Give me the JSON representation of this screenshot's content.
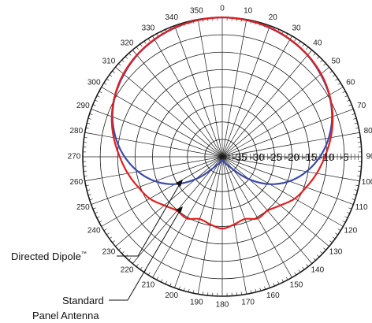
{
  "chart_data": {
    "type": "polar-line",
    "angular_axis": {
      "unit": "degrees",
      "direction": "clockwise",
      "zero_at": "top",
      "tick_labels": [
        "0",
        "10",
        "20",
        "30",
        "40",
        "50",
        "60",
        "70",
        "80",
        "90",
        "100",
        "110",
        "120",
        "130",
        "140",
        "150",
        "160",
        "170",
        "180",
        "190",
        "200",
        "210",
        "220",
        "230",
        "240",
        "250",
        "260",
        "270",
        "280",
        "290",
        "300",
        "310",
        "320",
        "330",
        "340",
        "350"
      ]
    },
    "radial_axis": {
      "range": [
        -40,
        0
      ],
      "tick_values": [
        -35,
        -30,
        -25,
        -20,
        -15,
        -10,
        -5
      ],
      "tick_labels": [
        "-35",
        "-30",
        "-25",
        "-20",
        "-15",
        "-10",
        "-5"
      ]
    },
    "grid": true,
    "series": [
      {
        "name": "Directed Dipole",
        "name_mark": "™",
        "color": "#3b4aa8",
        "theta": [
          0,
          10,
          20,
          30,
          40,
          50,
          60,
          70,
          80,
          90,
          100,
          110,
          120,
          130,
          140,
          150,
          160,
          170,
          180,
          190,
          200,
          210,
          220,
          230,
          240,
          250,
          260,
          270,
          280,
          290,
          300,
          310,
          320,
          330,
          340,
          350
        ],
        "r": [
          0,
          -0.2,
          -0.6,
          -1.2,
          -2,
          -3.2,
          -4.6,
          -6.5,
          -9,
          -12,
          -15.5,
          -19.5,
          -24.3,
          -30,
          -35.5,
          -37.5,
          -38.3,
          -38.8,
          -39,
          -38.8,
          -38.3,
          -37.5,
          -35.5,
          -30,
          -24.3,
          -19.5,
          -15.5,
          -12,
          -9,
          -6.5,
          -4.6,
          -3.2,
          -2,
          -1.2,
          -0.6,
          -0.2
        ]
      },
      {
        "name": "Standard Panel Antenna",
        "color": "#e02020",
        "theta": [
          0,
          10,
          20,
          30,
          40,
          50,
          60,
          70,
          80,
          90,
          100,
          110,
          120,
          130,
          140,
          150,
          160,
          170,
          180,
          190,
          200,
          210,
          220,
          230,
          240,
          250,
          260,
          270,
          280,
          290,
          300,
          310,
          320,
          330,
          340,
          350
        ],
        "r": [
          0,
          -0.2,
          -0.5,
          -1.1,
          -1.9,
          -3,
          -4.5,
          -6.3,
          -8.4,
          -10.6,
          -12.5,
          -14.4,
          -16,
          -18.3,
          -19.8,
          -19.6,
          -21,
          -20.3,
          -19.4,
          -20.3,
          -21,
          -19.6,
          -19.8,
          -18.3,
          -16,
          -14.4,
          -12.5,
          -10.6,
          -8.4,
          -6.3,
          -4.5,
          -3,
          -1.9,
          -1.1,
          -0.5,
          -0.2
        ]
      }
    ],
    "annotations": [
      {
        "text": "Directed Dipole",
        "mark": "™",
        "points_to": "Directed Dipole"
      },
      {
        "text_lines": [
          "Standard",
          "Panel Antenna"
        ],
        "points_to": "Standard Panel Antenna"
      }
    ]
  }
}
